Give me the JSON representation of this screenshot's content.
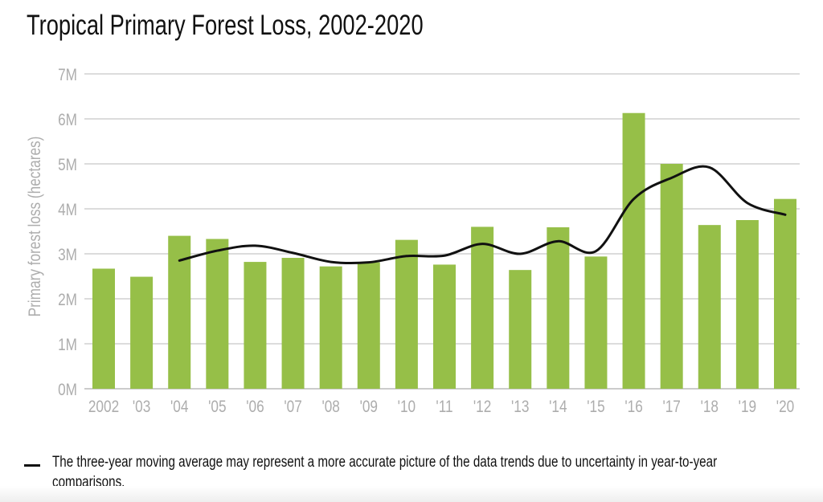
{
  "chart_data": {
    "type": "bar",
    "title": "Tropical Primary Forest Loss, 2002-2020",
    "xlabel": "",
    "ylabel": "Primary forest loss (hectares)",
    "ylim": [
      0,
      7000000
    ],
    "yticks": [
      0,
      1000000,
      2000000,
      3000000,
      4000000,
      5000000,
      6000000,
      7000000
    ],
    "ytick_labels": [
      "0M",
      "1M",
      "2M",
      "3M",
      "4M",
      "5M",
      "6M",
      "7M"
    ],
    "grid": true,
    "categories": [
      "2002",
      "'03",
      "'04",
      "'05",
      "'06",
      "'07",
      "'08",
      "'09",
      "'10",
      "'11",
      "'12",
      "'13",
      "'14",
      "'15",
      "'16",
      "'17",
      "'18",
      "'19",
      "'20"
    ],
    "series": [
      {
        "name": "Primary forest loss",
        "type": "bar",
        "color": "#96bf48",
        "values": [
          2670000,
          2490000,
          3400000,
          3330000,
          2820000,
          2910000,
          2720000,
          2810000,
          3310000,
          2760000,
          3600000,
          2640000,
          3590000,
          2940000,
          6130000,
          5000000,
          3640000,
          3750000,
          4220000
        ]
      },
      {
        "name": "Three-year moving average",
        "type": "line",
        "color": "#111111",
        "values": [
          null,
          null,
          2850000,
          3070000,
          3180000,
          3020000,
          2820000,
          2810000,
          2950000,
          2960000,
          3220000,
          3000000,
          3280000,
          3060000,
          4220000,
          4690000,
          4920000,
          4130000,
          3870000
        ]
      }
    ],
    "legend": {
      "placement": "bottom-left",
      "text": "The three-year moving average may represent a more accurate picture of the data trends due to uncertainty in year-to-year comparisons."
    }
  },
  "colors": {
    "bar": "#96bf48",
    "line": "#111111",
    "grid": "#d0d0d0",
    "axis_text": "#adadad"
  }
}
